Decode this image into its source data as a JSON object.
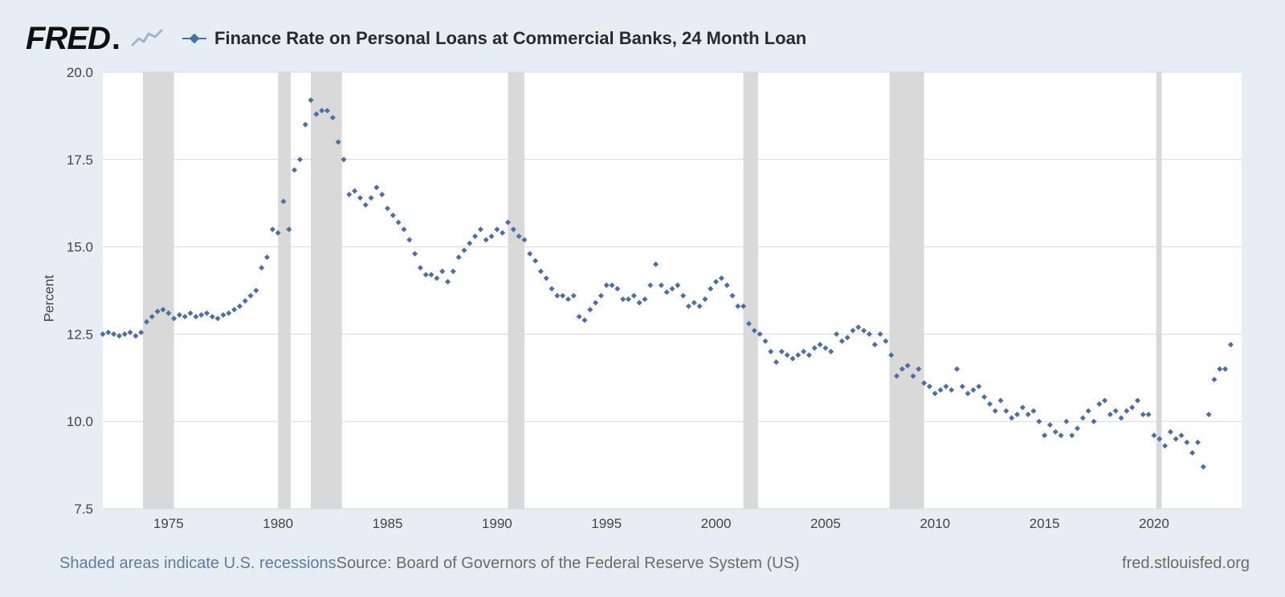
{
  "brand": {
    "name": "FRED",
    "dot": ".",
    "spark_color": "#9db6c9"
  },
  "legend": {
    "title": "Finance Rate on Personal Loans at Commercial Banks, 24 Month Loan",
    "marker_color": "#4a6fa5"
  },
  "footer": {
    "recession_note": "Shaded areas indicate U.S. recessions",
    "source_note": "Source: Board of Governors of the Federal Reserve System (US)",
    "site_note": "fred.stlouisfed.org"
  },
  "chart": {
    "type": "scatter",
    "ylabel": "Percent",
    "xlim": [
      1972,
      2024
    ],
    "ylim": [
      7.5,
      20.0
    ],
    "xtick_step": 5,
    "xtick_start": 1975,
    "xtick_end": 2020,
    "ytick_step": 2.5,
    "ytick_start": 7.5,
    "ytick_end": 20.0,
    "ytick_decimals": 1,
    "background_color": "#e6edf3",
    "plot_background": "#ffffff",
    "grid_color": "#d9d9d9",
    "grid_width": 1,
    "recession_fill": "#d9d9d9",
    "marker_color": "#4a6fa5",
    "marker_size": 7,
    "marker_shape": "diamond",
    "label_fontsize": 17,
    "recessions": [
      [
        1973.83,
        1975.25
      ],
      [
        1980.0,
        1980.58
      ],
      [
        1981.5,
        1982.92
      ],
      [
        1990.5,
        1991.25
      ],
      [
        2001.25,
        2001.92
      ],
      [
        2007.92,
        2009.5
      ],
      [
        2020.1,
        2020.35
      ]
    ],
    "series": [
      {
        "x": 1972.0,
        "y": 12.5
      },
      {
        "x": 1972.25,
        "y": 12.55
      },
      {
        "x": 1972.5,
        "y": 12.5
      },
      {
        "x": 1972.75,
        "y": 12.45
      },
      {
        "x": 1973.0,
        "y": 12.5
      },
      {
        "x": 1973.25,
        "y": 12.55
      },
      {
        "x": 1973.5,
        "y": 12.45
      },
      {
        "x": 1973.75,
        "y": 12.55
      },
      {
        "x": 1974.0,
        "y": 12.85
      },
      {
        "x": 1974.25,
        "y": 13.0
      },
      {
        "x": 1974.5,
        "y": 13.15
      },
      {
        "x": 1974.75,
        "y": 13.2
      },
      {
        "x": 1975.0,
        "y": 13.1
      },
      {
        "x": 1975.25,
        "y": 12.95
      },
      {
        "x": 1975.5,
        "y": 13.05
      },
      {
        "x": 1975.75,
        "y": 13.0
      },
      {
        "x": 1976.0,
        "y": 13.1
      },
      {
        "x": 1976.25,
        "y": 13.0
      },
      {
        "x": 1976.5,
        "y": 13.05
      },
      {
        "x": 1976.75,
        "y": 13.1
      },
      {
        "x": 1977.0,
        "y": 13.0
      },
      {
        "x": 1977.25,
        "y": 12.95
      },
      {
        "x": 1977.5,
        "y": 13.05
      },
      {
        "x": 1977.75,
        "y": 13.1
      },
      {
        "x": 1978.0,
        "y": 13.2
      },
      {
        "x": 1978.25,
        "y": 13.3
      },
      {
        "x": 1978.5,
        "y": 13.45
      },
      {
        "x": 1978.75,
        "y": 13.6
      },
      {
        "x": 1979.0,
        "y": 13.75
      },
      {
        "x": 1979.25,
        "y": 14.4
      },
      {
        "x": 1979.5,
        "y": 14.7
      },
      {
        "x": 1979.75,
        "y": 15.5
      },
      {
        "x": 1980.0,
        "y": 15.4
      },
      {
        "x": 1980.25,
        "y": 16.3
      },
      {
        "x": 1980.5,
        "y": 15.5
      },
      {
        "x": 1980.75,
        "y": 17.2
      },
      {
        "x": 1981.0,
        "y": 17.5
      },
      {
        "x": 1981.25,
        "y": 18.5
      },
      {
        "x": 1981.5,
        "y": 19.2
      },
      {
        "x": 1981.75,
        "y": 18.8
      },
      {
        "x": 1982.0,
        "y": 18.9
      },
      {
        "x": 1982.25,
        "y": 18.9
      },
      {
        "x": 1982.5,
        "y": 18.7
      },
      {
        "x": 1982.75,
        "y": 18.0
      },
      {
        "x": 1983.0,
        "y": 17.5
      },
      {
        "x": 1983.25,
        "y": 16.5
      },
      {
        "x": 1983.5,
        "y": 16.6
      },
      {
        "x": 1983.75,
        "y": 16.4
      },
      {
        "x": 1984.0,
        "y": 16.2
      },
      {
        "x": 1984.25,
        "y": 16.4
      },
      {
        "x": 1984.5,
        "y": 16.7
      },
      {
        "x": 1984.75,
        "y": 16.5
      },
      {
        "x": 1985.0,
        "y": 16.1
      },
      {
        "x": 1985.25,
        "y": 15.9
      },
      {
        "x": 1985.5,
        "y": 15.7
      },
      {
        "x": 1985.75,
        "y": 15.5
      },
      {
        "x": 1986.0,
        "y": 15.2
      },
      {
        "x": 1986.25,
        "y": 14.8
      },
      {
        "x": 1986.5,
        "y": 14.4
      },
      {
        "x": 1986.75,
        "y": 14.2
      },
      {
        "x": 1987.0,
        "y": 14.2
      },
      {
        "x": 1987.25,
        "y": 14.1
      },
      {
        "x": 1987.5,
        "y": 14.3
      },
      {
        "x": 1987.75,
        "y": 14.0
      },
      {
        "x": 1988.0,
        "y": 14.3
      },
      {
        "x": 1988.25,
        "y": 14.7
      },
      {
        "x": 1988.5,
        "y": 14.9
      },
      {
        "x": 1988.75,
        "y": 15.1
      },
      {
        "x": 1989.0,
        "y": 15.3
      },
      {
        "x": 1989.25,
        "y": 15.5
      },
      {
        "x": 1989.5,
        "y": 15.2
      },
      {
        "x": 1989.75,
        "y": 15.3
      },
      {
        "x": 1990.0,
        "y": 15.5
      },
      {
        "x": 1990.25,
        "y": 15.4
      },
      {
        "x": 1990.5,
        "y": 15.7
      },
      {
        "x": 1990.75,
        "y": 15.5
      },
      {
        "x": 1991.0,
        "y": 15.3
      },
      {
        "x": 1991.25,
        "y": 15.2
      },
      {
        "x": 1991.5,
        "y": 14.8
      },
      {
        "x": 1991.75,
        "y": 14.6
      },
      {
        "x": 1992.0,
        "y": 14.3
      },
      {
        "x": 1992.25,
        "y": 14.1
      },
      {
        "x": 1992.5,
        "y": 13.8
      },
      {
        "x": 1992.75,
        "y": 13.6
      },
      {
        "x": 1993.0,
        "y": 13.6
      },
      {
        "x": 1993.25,
        "y": 13.5
      },
      {
        "x": 1993.5,
        "y": 13.6
      },
      {
        "x": 1993.75,
        "y": 13.0
      },
      {
        "x": 1994.0,
        "y": 12.9
      },
      {
        "x": 1994.25,
        "y": 13.2
      },
      {
        "x": 1994.5,
        "y": 13.4
      },
      {
        "x": 1994.75,
        "y": 13.6
      },
      {
        "x": 1995.0,
        "y": 13.9
      },
      {
        "x": 1995.25,
        "y": 13.9
      },
      {
        "x": 1995.5,
        "y": 13.8
      },
      {
        "x": 1995.75,
        "y": 13.5
      },
      {
        "x": 1996.0,
        "y": 13.5
      },
      {
        "x": 1996.25,
        "y": 13.6
      },
      {
        "x": 1996.5,
        "y": 13.4
      },
      {
        "x": 1996.75,
        "y": 13.5
      },
      {
        "x": 1997.0,
        "y": 13.9
      },
      {
        "x": 1997.25,
        "y": 14.5
      },
      {
        "x": 1997.5,
        "y": 13.9
      },
      {
        "x": 1997.75,
        "y": 13.7
      },
      {
        "x": 1998.0,
        "y": 13.8
      },
      {
        "x": 1998.25,
        "y": 13.9
      },
      {
        "x": 1998.5,
        "y": 13.6
      },
      {
        "x": 1998.75,
        "y": 13.3
      },
      {
        "x": 1999.0,
        "y": 13.4
      },
      {
        "x": 1999.25,
        "y": 13.3
      },
      {
        "x": 1999.5,
        "y": 13.5
      },
      {
        "x": 1999.75,
        "y": 13.8
      },
      {
        "x": 2000.0,
        "y": 14.0
      },
      {
        "x": 2000.25,
        "y": 14.1
      },
      {
        "x": 2000.5,
        "y": 13.9
      },
      {
        "x": 2000.75,
        "y": 13.6
      },
      {
        "x": 2001.0,
        "y": 13.3
      },
      {
        "x": 2001.25,
        "y": 13.3
      },
      {
        "x": 2001.5,
        "y": 12.8
      },
      {
        "x": 2001.75,
        "y": 12.6
      },
      {
        "x": 2002.0,
        "y": 12.5
      },
      {
        "x": 2002.25,
        "y": 12.3
      },
      {
        "x": 2002.5,
        "y": 12.0
      },
      {
        "x": 2002.75,
        "y": 11.7
      },
      {
        "x": 2003.0,
        "y": 12.0
      },
      {
        "x": 2003.25,
        "y": 11.9
      },
      {
        "x": 2003.5,
        "y": 11.8
      },
      {
        "x": 2003.75,
        "y": 11.9
      },
      {
        "x": 2004.0,
        "y": 12.0
      },
      {
        "x": 2004.25,
        "y": 11.9
      },
      {
        "x": 2004.5,
        "y": 12.1
      },
      {
        "x": 2004.75,
        "y": 12.2
      },
      {
        "x": 2005.0,
        "y": 12.1
      },
      {
        "x": 2005.25,
        "y": 12.0
      },
      {
        "x": 2005.5,
        "y": 12.5
      },
      {
        "x": 2005.75,
        "y": 12.3
      },
      {
        "x": 2006.0,
        "y": 12.4
      },
      {
        "x": 2006.25,
        "y": 12.6
      },
      {
        "x": 2006.5,
        "y": 12.7
      },
      {
        "x": 2006.75,
        "y": 12.6
      },
      {
        "x": 2007.0,
        "y": 12.5
      },
      {
        "x": 2007.25,
        "y": 12.2
      },
      {
        "x": 2007.5,
        "y": 12.5
      },
      {
        "x": 2007.75,
        "y": 12.3
      },
      {
        "x": 2008.0,
        "y": 11.9
      },
      {
        "x": 2008.25,
        "y": 11.3
      },
      {
        "x": 2008.5,
        "y": 11.5
      },
      {
        "x": 2008.75,
        "y": 11.6
      },
      {
        "x": 2009.0,
        "y": 11.3
      },
      {
        "x": 2009.25,
        "y": 11.5
      },
      {
        "x": 2009.5,
        "y": 11.1
      },
      {
        "x": 2009.75,
        "y": 11.0
      },
      {
        "x": 2010.0,
        "y": 10.8
      },
      {
        "x": 2010.25,
        "y": 10.9
      },
      {
        "x": 2010.5,
        "y": 11.0
      },
      {
        "x": 2010.75,
        "y": 10.9
      },
      {
        "x": 2011.0,
        "y": 11.5
      },
      {
        "x": 2011.25,
        "y": 11.0
      },
      {
        "x": 2011.5,
        "y": 10.8
      },
      {
        "x": 2011.75,
        "y": 10.9
      },
      {
        "x": 2012.0,
        "y": 11.0
      },
      {
        "x": 2012.25,
        "y": 10.7
      },
      {
        "x": 2012.5,
        "y": 10.5
      },
      {
        "x": 2012.75,
        "y": 10.3
      },
      {
        "x": 2013.0,
        "y": 10.6
      },
      {
        "x": 2013.25,
        "y": 10.3
      },
      {
        "x": 2013.5,
        "y": 10.1
      },
      {
        "x": 2013.75,
        "y": 10.2
      },
      {
        "x": 2014.0,
        "y": 10.4
      },
      {
        "x": 2014.25,
        "y": 10.2
      },
      {
        "x": 2014.5,
        "y": 10.3
      },
      {
        "x": 2014.75,
        "y": 10.0
      },
      {
        "x": 2015.0,
        "y": 9.6
      },
      {
        "x": 2015.25,
        "y": 9.9
      },
      {
        "x": 2015.5,
        "y": 9.7
      },
      {
        "x": 2015.75,
        "y": 9.6
      },
      {
        "x": 2016.0,
        "y": 10.0
      },
      {
        "x": 2016.25,
        "y": 9.6
      },
      {
        "x": 2016.5,
        "y": 9.8
      },
      {
        "x": 2016.75,
        "y": 10.1
      },
      {
        "x": 2017.0,
        "y": 10.3
      },
      {
        "x": 2017.25,
        "y": 10.0
      },
      {
        "x": 2017.5,
        "y": 10.5
      },
      {
        "x": 2017.75,
        "y": 10.6
      },
      {
        "x": 2018.0,
        "y": 10.2
      },
      {
        "x": 2018.25,
        "y": 10.3
      },
      {
        "x": 2018.5,
        "y": 10.1
      },
      {
        "x": 2018.75,
        "y": 10.3
      },
      {
        "x": 2019.0,
        "y": 10.4
      },
      {
        "x": 2019.25,
        "y": 10.6
      },
      {
        "x": 2019.5,
        "y": 10.2
      },
      {
        "x": 2019.75,
        "y": 10.2
      },
      {
        "x": 2020.0,
        "y": 9.6
      },
      {
        "x": 2020.25,
        "y": 9.5
      },
      {
        "x": 2020.5,
        "y": 9.3
      },
      {
        "x": 2020.75,
        "y": 9.7
      },
      {
        "x": 2021.0,
        "y": 9.5
      },
      {
        "x": 2021.25,
        "y": 9.6
      },
      {
        "x": 2021.5,
        "y": 9.4
      },
      {
        "x": 2021.75,
        "y": 9.1
      },
      {
        "x": 2022.0,
        "y": 9.4
      },
      {
        "x": 2022.25,
        "y": 8.7
      },
      {
        "x": 2022.5,
        "y": 10.2
      },
      {
        "x": 2022.75,
        "y": 11.2
      },
      {
        "x": 2023.0,
        "y": 11.5
      },
      {
        "x": 2023.25,
        "y": 11.5
      },
      {
        "x": 2023.5,
        "y": 12.2
      }
    ]
  }
}
